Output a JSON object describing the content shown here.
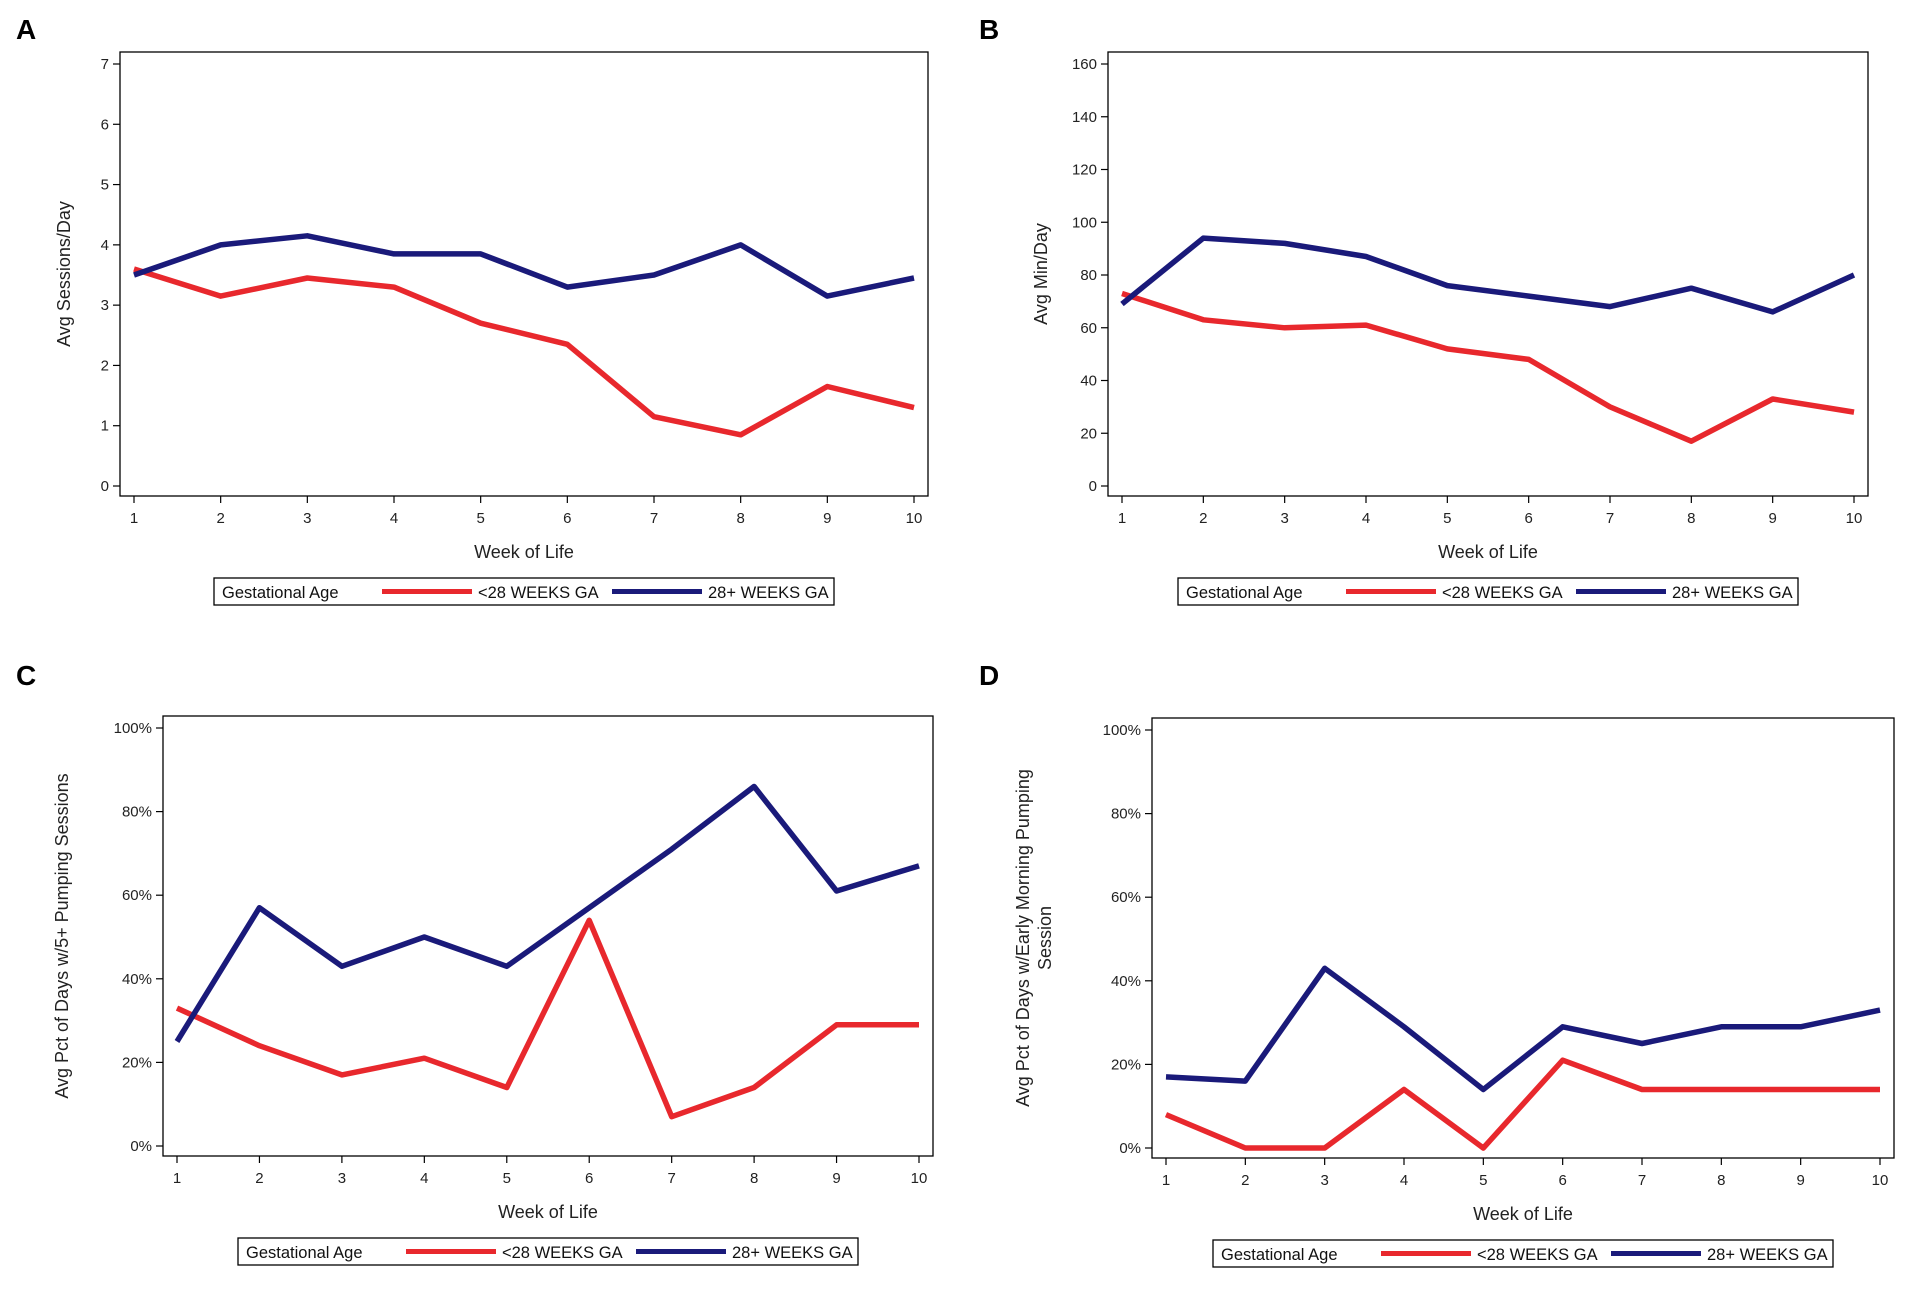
{
  "colors": {
    "red": "#e8282d",
    "navy": "#1a1a7a",
    "axis": "#000000",
    "legend_border": "#000000"
  },
  "chart_data": [
    {
      "panel_label": "A",
      "type": "line",
      "xlabel": "Week of Life",
      "ylabel": [
        "Avg Sessions/Day"
      ],
      "ylim": [
        0,
        7
      ],
      "yticks": [
        0,
        1,
        2,
        3,
        4,
        5,
        6,
        7
      ],
      "ytick_labels": [
        "0",
        "1",
        "2",
        "3",
        "4",
        "5",
        "6",
        "7"
      ],
      "x": [
        1,
        2,
        3,
        4,
        5,
        6,
        7,
        8,
        9,
        10
      ],
      "xtick_labels": [
        "1",
        "2",
        "3",
        "4",
        "5",
        "6",
        "7",
        "8",
        "9",
        "10"
      ],
      "legend_title": "Gestational Age",
      "series": [
        {
          "name": "<28 WEEKS GA",
          "color": "#e8282d",
          "values": [
            3.6,
            3.15,
            3.45,
            3.3,
            2.7,
            2.35,
            1.15,
            0.85,
            1.65,
            1.3
          ]
        },
        {
          "name": "28+ WEEKS GA",
          "color": "#1a1a7a",
          "values": [
            3.5,
            4.0,
            4.15,
            3.85,
            3.85,
            3.3,
            3.5,
            4.0,
            3.15,
            3.45
          ]
        }
      ]
    },
    {
      "panel_label": "B",
      "type": "line",
      "xlabel": "Week of Life",
      "ylabel": [
        "Avg Min/Day"
      ],
      "ylim": [
        0,
        160
      ],
      "yticks": [
        0,
        20,
        40,
        60,
        80,
        100,
        120,
        140,
        160
      ],
      "ytick_labels": [
        "0",
        "20",
        "40",
        "60",
        "80",
        "100",
        "120",
        "140",
        "160"
      ],
      "x": [
        1,
        2,
        3,
        4,
        5,
        6,
        7,
        8,
        9,
        10
      ],
      "xtick_labels": [
        "1",
        "2",
        "3",
        "4",
        "5",
        "6",
        "7",
        "8",
        "9",
        "10"
      ],
      "legend_title": "Gestational Age",
      "series": [
        {
          "name": "<28 WEEKS GA",
          "color": "#e8282d",
          "values": [
            73,
            63,
            60,
            61,
            52,
            48,
            30,
            17,
            33,
            28
          ]
        },
        {
          "name": "28+ WEEKS GA",
          "color": "#1a1a7a",
          "values": [
            69,
            94,
            92,
            87,
            76,
            72,
            68,
            75,
            66,
            80
          ]
        }
      ]
    },
    {
      "panel_label": "C",
      "type": "line",
      "xlabel": "Week of Life",
      "ylabel": [
        "Avg Pct of Days w/5+ Pumping Sessions"
      ],
      "ylim": [
        0,
        100
      ],
      "yticks": [
        0,
        20,
        40,
        60,
        80,
        100
      ],
      "ytick_labels": [
        "0%",
        "20%",
        "40%",
        "60%",
        "80%",
        "100%"
      ],
      "x": [
        1,
        2,
        3,
        4,
        5,
        6,
        7,
        8,
        9,
        10
      ],
      "xtick_labels": [
        "1",
        "2",
        "3",
        "4",
        "5",
        "6",
        "7",
        "8",
        "9",
        "10"
      ],
      "legend_title": "Gestational Age",
      "series": [
        {
          "name": "<28 WEEKS GA",
          "color": "#e8282d",
          "values": [
            33,
            24,
            17,
            21,
            14,
            54,
            7,
            14,
            29,
            29
          ]
        },
        {
          "name": "28+ WEEKS GA",
          "color": "#1a1a7a",
          "values": [
            25,
            57,
            43,
            50,
            43,
            57,
            71,
            86,
            61,
            67
          ]
        }
      ]
    },
    {
      "panel_label": "D",
      "type": "line",
      "xlabel": "Week of Life",
      "ylabel": [
        "Avg Pct of Days w/Early Morning Pumping",
        "Session"
      ],
      "ylim": [
        0,
        100
      ],
      "yticks": [
        0,
        20,
        40,
        60,
        80,
        100
      ],
      "ytick_labels": [
        "0%",
        "20%",
        "40%",
        "60%",
        "80%",
        "100%"
      ],
      "x": [
        1,
        2,
        3,
        4,
        5,
        6,
        7,
        8,
        9,
        10
      ],
      "xtick_labels": [
        "1",
        "2",
        "3",
        "4",
        "5",
        "6",
        "7",
        "8",
        "9",
        "10"
      ],
      "legend_title": "Gestational Age",
      "series": [
        {
          "name": "<28 WEEKS GA",
          "color": "#e8282d",
          "values": [
            8,
            0,
            0,
            14,
            0,
            21,
            14,
            14,
            14,
            14
          ]
        },
        {
          "name": "28+ WEEKS GA",
          "color": "#1a1a7a",
          "values": [
            17,
            16,
            43,
            29,
            14,
            29,
            25,
            29,
            29,
            33
          ]
        }
      ]
    }
  ]
}
